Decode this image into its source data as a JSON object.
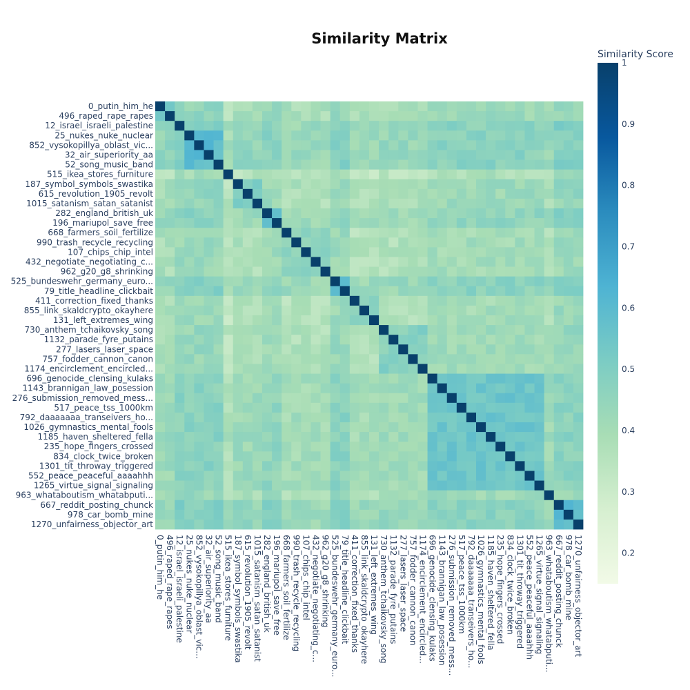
{
  "chart_data": {
    "type": "heatmap",
    "title": "Similarity Matrix",
    "colorbar_title": "Similarity Score",
    "zlim": [
      0.15,
      1
    ],
    "colorbar_ticks": [
      0.2,
      0.3,
      0.4,
      0.5,
      0.6,
      0.7,
      0.8,
      0.9,
      1
    ],
    "colorbar_tick_labels": [
      "0.2",
      "0.3",
      "0.4",
      "0.5",
      "0.6",
      "0.7",
      "0.8",
      "0.9",
      "1"
    ],
    "colorscale": [
      "#f2fae7",
      "#d6efd0",
      "#a8ddb5",
      "#7bccc4",
      "#4eb3d3",
      "#2b8cbe",
      "#08589e",
      "#08406b"
    ],
    "labels": [
      "0_putin_him_he",
      "496_raped_rape_rapes",
      "12_israel_israeli_palestine",
      "25_nukes_nuke_nuclear",
      "852_vysokopillya_oblast_vic...",
      "32_air_superiority_aa",
      "52_song_music_band",
      "515_ikea_stores_furniture",
      "187_symbol_symbols_swastika",
      "615_revolution_1905_revolt",
      "1015_satanism_satan_satanist",
      "282_england_british_uk",
      "196_mariupol_save_free",
      "668_farmers_soil_fertilize",
      "990_trash_recycle_recycling",
      "107_chips_chip_intel",
      "432_negotiate_negotiating_c...",
      "962_g20_g8_shrinking",
      "525_bundeswehr_germany_euro...",
      "79_title_headline_clickbait",
      "411_correction_fixed_thanks",
      "855_link_skaldcrypto_okayhere",
      "131_left_extremes_wing",
      "730_anthem_tchaikovsky_song",
      "1132_parade_fyre_putains",
      "277_lasers_laser_space",
      "757_fodder_cannon_canon",
      "1174_encirclement_encircled...",
      "696_genocide_clensing_kulaks",
      "1143_brannigan_law_posession",
      "276_submission_removed_mess...",
      "517_peace_tss_1000km",
      "792_daaaaaaa_transeivers_ho...",
      "1026_gymnastics_mental_fools",
      "1185_haven_sheltered_fella",
      "235_hope_fingers_crossed",
      "834_clock_twice_broken",
      "1301_tit_throway_triggered",
      "552_peace_peaceful_aaaahhh",
      "1265_virtue_signal_signaling",
      "963_whataboutism_whatabputi...",
      "667_reddit_posting_chunck",
      "978_car_bomb_mine",
      "1270_unfairness_objector_art"
    ],
    "blocks": [
      {
        "from": 0,
        "to": 1,
        "strength": 0.1
      },
      {
        "from": 2,
        "to": 2,
        "strength": 0.3
      },
      {
        "from": 3,
        "to": 6,
        "strength": 0.3
      },
      {
        "from": 7,
        "to": 7,
        "strength": -0.12
      },
      {
        "from": 8,
        "to": 10,
        "strength": 0.08
      },
      {
        "from": 11,
        "to": 12,
        "strength": 0.22
      },
      {
        "from": 13,
        "to": 17,
        "strength": 0.0
      },
      {
        "from": 18,
        "to": 19,
        "strength": 0.28
      },
      {
        "from": 20,
        "to": 22,
        "strength": 0.0
      },
      {
        "from": 23,
        "to": 27,
        "strength": 0.05
      },
      {
        "from": 28,
        "to": 39,
        "strength": 0.2
      },
      {
        "from": 40,
        "to": 40,
        "strength": 0.05
      },
      {
        "from": 41,
        "to": 43,
        "strength": 0.3
      }
    ]
  }
}
